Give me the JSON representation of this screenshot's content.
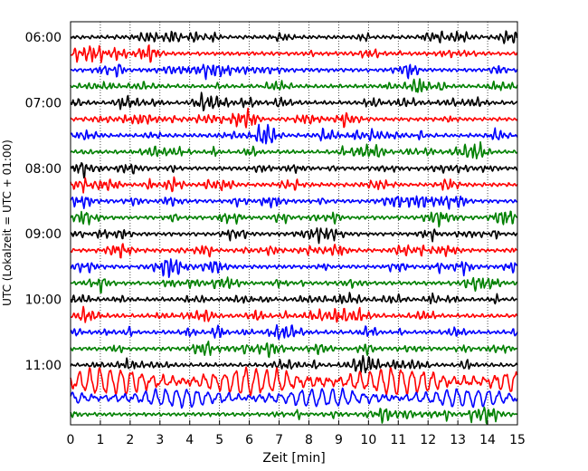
{
  "chart_data": {
    "type": "line",
    "title": "",
    "xlabel": "Zeit  [min]",
    "ylabel": "UTC (Lokalzeit = UTC + 01:00)",
    "xlim": [
      0,
      15
    ],
    "x_ticks": [
      0,
      1,
      2,
      3,
      4,
      5,
      6,
      7,
      8,
      9,
      10,
      11,
      12,
      13,
      14,
      15
    ],
    "x_tick_labels": [
      "0",
      "1",
      "2",
      "3",
      "4",
      "5",
      "6",
      "7",
      "8",
      "9",
      "10",
      "11",
      "12",
      "13",
      "14",
      "15"
    ],
    "y_tick_labels": [
      "06:00",
      "07:00",
      "08:00",
      "09:00",
      "10:00",
      "11:00"
    ],
    "grid": "vertical dotted",
    "trace_colors": [
      "#000000",
      "#ff0000",
      "#0000ff",
      "#008000"
    ],
    "traces_per_hour": 4,
    "trace_interval_min": 15,
    "trace_count": 24,
    "trace_amplitudes": [
      1,
      1,
      1,
      1,
      1,
      1,
      1,
      1,
      1,
      1,
      1,
      1,
      1,
      1,
      1,
      1,
      1,
      1,
      1,
      1,
      1.4,
      3.2,
      2.2,
      1.1
    ]
  }
}
